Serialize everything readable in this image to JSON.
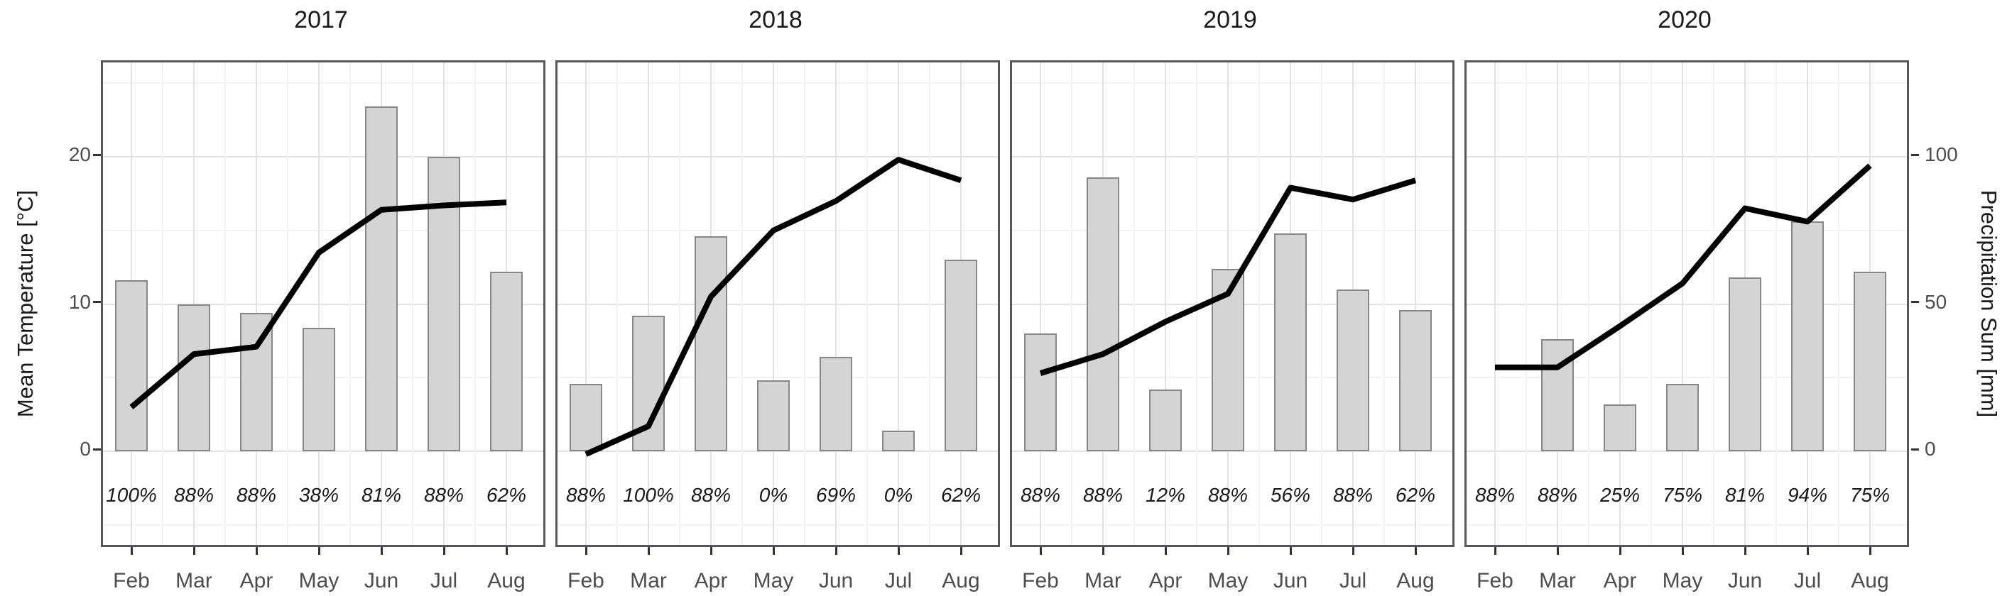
{
  "figure": {
    "left_axis_title": "Mean Temperature [°C]",
    "right_axis_title": "Precipitation Sum [mm]",
    "colors": {
      "bar_fill": "#d4d4d4",
      "bar_border": "#878787",
      "line": "#000000",
      "panel_border": "#55585a",
      "grid_major": "#e2e2e2",
      "grid_minor": "#f2f2f2",
      "tick_text": "#4d4d4d",
      "label_text": "#1a1a1a"
    }
  },
  "chart_data": {
    "type": "bar",
    "subtype": "dual-axis bar+line, 4 year facets",
    "categories": [
      "Feb",
      "Mar",
      "Apr",
      "May",
      "Jun",
      "Jul",
      "Aug"
    ],
    "left_axis": {
      "label": "Mean Temperature [°C]",
      "ticks": [
        0,
        10,
        20
      ],
      "range_shown": [
        -6.5,
        26.5
      ]
    },
    "right_axis": {
      "label": "Precipitation Sum [mm]",
      "ticks": [
        0,
        50,
        100
      ],
      "range_shown": [
        -32.5,
        132.5
      ]
    },
    "grid": true,
    "legend_position": "none",
    "facets": [
      {
        "title": "2017",
        "series": [
          {
            "name": "Precipitation Sum [mm]",
            "type": "bar",
            "values": [
              58,
              50,
              47,
              42,
              117,
              100,
              61
            ]
          },
          {
            "name": "Mean Temperature [°C]",
            "type": "line",
            "values": [
              3.0,
              6.6,
              7.1,
              13.5,
              16.4,
              16.7,
              16.9
            ]
          }
        ],
        "coverage_labels": [
          "100%",
          "88%",
          "88%",
          "38%",
          "81%",
          "88%",
          "62%"
        ]
      },
      {
        "title": "2018",
        "series": [
          {
            "name": "Precipitation Sum [mm]",
            "type": "bar",
            "values": [
              23,
              46,
              73,
              24,
              32,
              7,
              65
            ]
          },
          {
            "name": "Mean Temperature [°C]",
            "type": "line",
            "values": [
              -0.2,
              1.7,
              10.5,
              15.0,
              17.0,
              19.8,
              18.4
            ]
          }
        ],
        "coverage_labels": [
          "88%",
          "100%",
          "88%",
          "0%",
          "69%",
          "0%",
          "62%"
        ]
      },
      {
        "title": "2019",
        "series": [
          {
            "name": "Precipitation Sum [mm]",
            "type": "bar",
            "values": [
              40,
              93,
              21,
              62,
              74,
              55,
              48
            ]
          },
          {
            "name": "Mean Temperature [°C]",
            "type": "line",
            "values": [
              5.3,
              6.6,
              8.8,
              10.7,
              17.9,
              17.1,
              18.4
            ]
          }
        ],
        "coverage_labels": [
          "88%",
          "88%",
          "12%",
          "88%",
          "56%",
          "88%",
          "62%"
        ]
      },
      {
        "title": "2020",
        "series": [
          {
            "name": "Precipitation Sum [mm]",
            "type": "bar",
            "values": [
              0,
              38,
              16,
              23,
              59,
              78,
              61
            ]
          },
          {
            "name": "Mean Temperature [°C]",
            "type": "line",
            "values": [
              5.7,
              5.7,
              8.5,
              11.4,
              16.5,
              15.6,
              19.4
            ]
          }
        ],
        "coverage_labels": [
          "88%",
          "88%",
          "25%",
          "75%",
          "81%",
          "94%",
          "75%"
        ]
      }
    ]
  }
}
